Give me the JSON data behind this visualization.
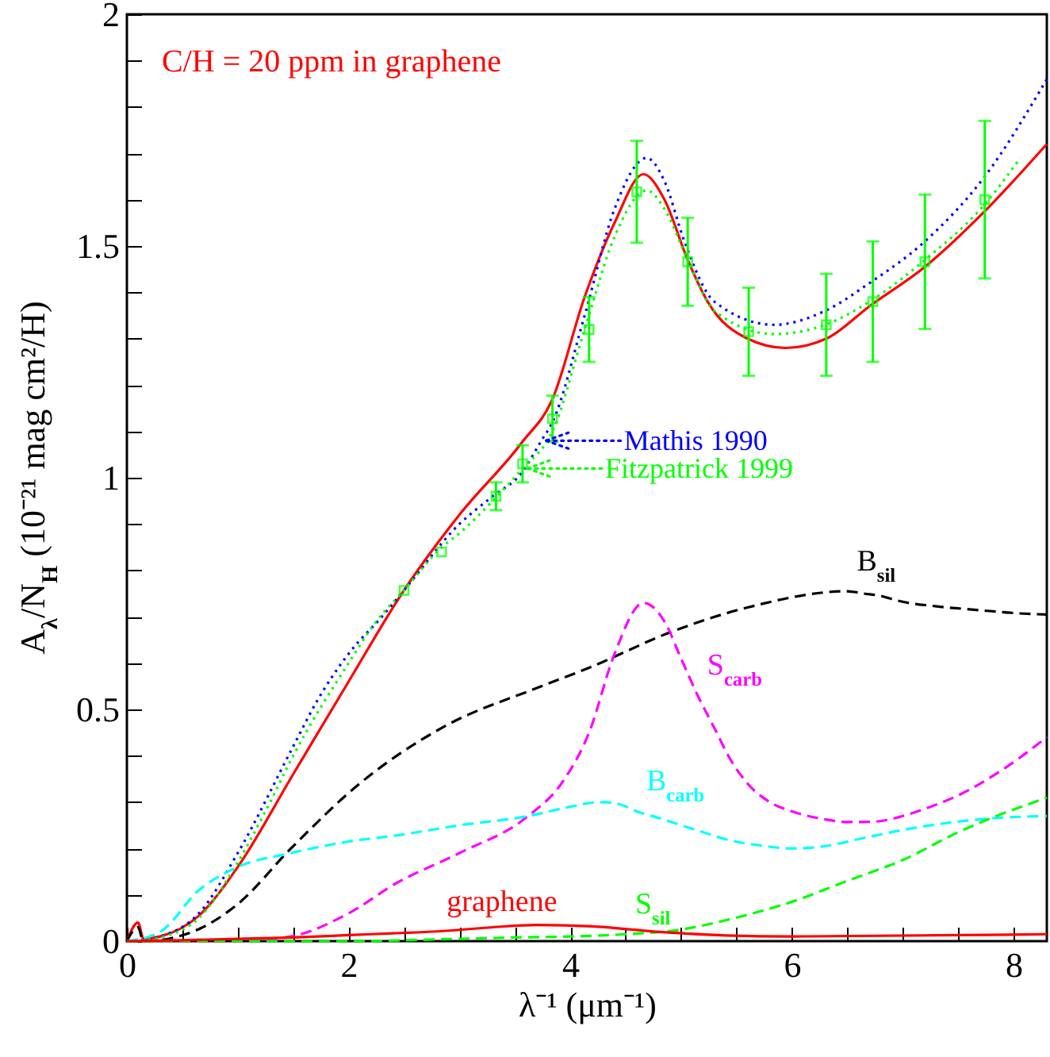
{
  "chart_data": {
    "type": "line",
    "xlabel": "λ⁻¹  (μm⁻¹)",
    "ylabel": "A$_{λ}$/N$_{H}$  (10⁻²¹ mag cm²/H)",
    "annotations": [
      "C/H = 20 ppm in graphene"
    ],
    "legend": "center",
    "xlim": [
      0,
      8.3
    ],
    "ylim": [
      0,
      2
    ],
    "xticks": [
      0,
      {
        "value": 0.5,
        "label": null
      },
      {
        "value": 1,
        "label": null
      },
      {
        "value": 1.5,
        "label": null
      },
      2,
      {
        "value": 2.5,
        "label": null
      },
      {
        "value": 3,
        "label": null
      },
      {
        "value": 3.5,
        "label": null
      },
      4,
      {
        "value": 4.5,
        "label": null
      },
      {
        "value": 5,
        "label": null
      },
      {
        "value": 5.5,
        "label": null
      },
      6,
      {
        "value": 6.5,
        "label": null
      },
      {
        "value": 7,
        "label": null
      },
      {
        "value": 7.5,
        "label": null
      },
      8
    ],
    "yticks": [
      0,
      {
        "value": 0.1,
        "label": null
      },
      {
        "value": 0.2,
        "label": null
      },
      {
        "value": 0.3,
        "label": null
      },
      {
        "value": 0.4,
        "label": null
      },
      0.5,
      {
        "value": 0.6,
        "label": null
      },
      {
        "value": 0.7,
        "label": null
      },
      {
        "value": 0.8,
        "label": null
      },
      {
        "value": 0.9,
        "label": null
      },
      1,
      {
        "value": 1.1,
        "label": null
      },
      {
        "value": 1.2,
        "label": null
      },
      {
        "value": 1.3,
        "label": null
      },
      {
        "value": 1.4,
        "label": null
      },
      1.5,
      {
        "value": 1.6,
        "label": null
      },
      {
        "value": 1.7,
        "label": null
      },
      {
        "value": 1.8,
        "label": null
      },
      {
        "value": 1.9,
        "label": null
      },
      2
    ],
    "series": [
      {
        "color": "#ff0000",
        "line_style": "solid",
        "x": [
          0,
          0.1,
          0.15,
          0.3,
          0.65,
          1.0,
          1.5,
          2.0,
          2.5,
          3.0,
          3.56,
          3.84,
          4.13,
          4.4,
          4.66,
          4.85,
          5.06,
          5.24,
          5.6,
          5.94,
          6.31,
          6.7,
          7.2,
          7.74,
          8.3
        ],
        "values": [
          0,
          0.04,
          0.005,
          0.01,
          0.055,
          0.16,
          0.36,
          0.56,
          0.757,
          0.92,
          1.075,
          1.17,
          1.39,
          1.55,
          1.655,
          1.6,
          1.47,
          1.38,
          1.3,
          1.28,
          1.3,
          1.37,
          1.455,
          1.575,
          1.72
        ]
      },
      {
        "name": "Mathis 1990",
        "color": "#0000ff",
        "line_style": "dotted",
        "x": [
          0,
          0.15,
          0.3,
          0.65,
          1.0,
          1.5,
          1.72,
          2.0,
          2.3,
          2.5,
          3.0,
          3.3,
          3.56,
          3.74,
          3.84,
          4.13,
          4.4,
          4.69,
          4.85,
          5.03,
          5.3,
          5.84,
          6.3,
          6.7,
          7.2,
          7.74,
          8.3
        ],
        "values": [
          0,
          0.003,
          0.01,
          0.06,
          0.19,
          0.42,
          0.52,
          0.62,
          0.7,
          0.757,
          0.9,
          0.96,
          1.01,
          1.08,
          1.12,
          1.35,
          1.58,
          1.69,
          1.64,
          1.51,
          1.38,
          1.33,
          1.36,
          1.42,
          1.51,
          1.65,
          1.86
        ]
      },
      {
        "name": "Fitzpatrick 1999",
        "color": "#00ff00",
        "line_style": "dotted",
        "x": [
          0,
          0.15,
          0.3,
          0.65,
          1.0,
          1.25,
          1.5,
          2.0,
          2.25,
          2.5,
          2.84,
          3.0,
          3.3,
          3.57,
          3.84,
          4.13,
          4.4,
          4.69,
          4.85,
          5.06,
          5.3,
          5.84,
          6.3,
          6.7,
          7.2,
          7.74,
          8.06
        ],
        "values": [
          0,
          0.002,
          0.008,
          0.05,
          0.17,
          0.28,
          0.4,
          0.6,
          0.69,
          0.757,
          0.85,
          0.88,
          0.95,
          1.02,
          1.1,
          1.32,
          1.52,
          1.62,
          1.58,
          1.47,
          1.36,
          1.31,
          1.33,
          1.38,
          1.47,
          1.59,
          1.69
        ]
      },
      {
        "type": "scatter",
        "color": "#00ff00",
        "marker": "square",
        "x": [
          2.5,
          2.84,
          3.33,
          3.57,
          3.84,
          4.17,
          4.6,
          5.06,
          5.61,
          6.31,
          6.73,
          7.2,
          7.74
        ],
        "values": [
          0.757,
          0.84,
          0.96,
          1.03,
          1.127,
          1.32,
          1.617,
          1.466,
          1.315,
          1.33,
          1.38,
          1.466,
          1.6
        ],
        "errors": [
          null,
          null,
          0.03,
          0.04,
          0.05,
          0.07,
          0.11,
          0.095,
          0.095,
          0.11,
          0.13,
          0.145,
          0.17
        ]
      },
      {
        "name": "B$_{sil}$",
        "color": "#000000",
        "line_style": "dashed",
        "x": [
          0,
          0.1,
          0.15,
          0.59,
          1.0,
          1.48,
          2.1,
          2.84,
          3.74,
          4.17,
          4.94,
          5.6,
          6.5,
          6.65,
          6.8,
          6.95,
          7.1,
          7.25,
          7.4,
          7.55,
          7.7,
          7.85,
          8.0,
          8.15,
          8.3
        ],
        "values": [
          0,
          0.03,
          0,
          0.02,
          0.08,
          0.2,
          0.34,
          0.46,
          0.55,
          0.59,
          0.67,
          0.72,
          0.755,
          0.75,
          0.745,
          0.735,
          0.728,
          0.724,
          0.72,
          0.717,
          0.714,
          0.711,
          0.708,
          0.706,
          0.705
        ]
      },
      {
        "name": "S$_{carb}$",
        "color": "#ff00ff",
        "line_style": "dashed",
        "x": [
          0,
          1.0,
          1.48,
          2.0,
          2.43,
          3.0,
          3.62,
          3.92,
          4.17,
          4.4,
          4.66,
          4.85,
          5.0,
          5.15,
          5.3,
          5.45,
          5.6,
          5.8,
          6.0,
          6.25,
          6.51,
          6.75,
          7.0,
          7.25,
          7.46,
          7.9,
          8.3
        ],
        "values": [
          0,
          0,
          0.01,
          0.06,
          0.125,
          0.19,
          0.27,
          0.34,
          0.45,
          0.62,
          0.73,
          0.69,
          0.61,
          0.53,
          0.46,
          0.39,
          0.34,
          0.3,
          0.28,
          0.265,
          0.257,
          0.258,
          0.27,
          0.29,
          0.31,
          0.37,
          0.44
        ]
      },
      {
        "name": "B$_{carb}$",
        "color": "#00ffff",
        "line_style": "dashed",
        "x": [
          0,
          0.3,
          0.65,
          1.0,
          1.48,
          2.0,
          2.43,
          3.0,
          3.62,
          4.0,
          4.27,
          4.45,
          4.6,
          4.81,
          5.0,
          5.2,
          5.4,
          5.7,
          6.0,
          6.3,
          6.6,
          7.0,
          7.4,
          7.8,
          8.3
        ],
        "values": [
          0,
          0.02,
          0.11,
          0.16,
          0.19,
          0.215,
          0.228,
          0.25,
          0.27,
          0.29,
          0.3,
          0.295,
          0.28,
          0.265,
          0.25,
          0.235,
          0.22,
          0.207,
          0.2,
          0.205,
          0.22,
          0.24,
          0.255,
          0.265,
          0.27
        ]
      },
      {
        "name": "S$_{sil}$",
        "color": "#00ff00",
        "line_style": "dashed",
        "x": [
          0,
          1.0,
          2.0,
          3.0,
          3.5,
          4.0,
          4.25,
          4.5,
          5.0,
          5.4,
          6.0,
          6.5,
          7.0,
          7.5,
          8.3
        ],
        "values": [
          0,
          0,
          0,
          0.005,
          0.008,
          0.01,
          0.012,
          0.015,
          0.025,
          0.045,
          0.085,
          0.13,
          0.175,
          0.235,
          0.31
        ]
      },
      {
        "name": "graphene",
        "color": "#ff0000",
        "line_style": "solid",
        "x": [
          0,
          0.5,
          1.0,
          1.5,
          2.0,
          2.4,
          2.8,
          3.3,
          3.7,
          4.2,
          4.8,
          6.0,
          8.3
        ],
        "values": [
          0,
          0.002,
          0.005,
          0.008,
          0.013,
          0.017,
          0.021,
          0.03,
          0.035,
          0.032,
          0.02,
          0.01,
          0.015
        ]
      }
    ]
  }
}
